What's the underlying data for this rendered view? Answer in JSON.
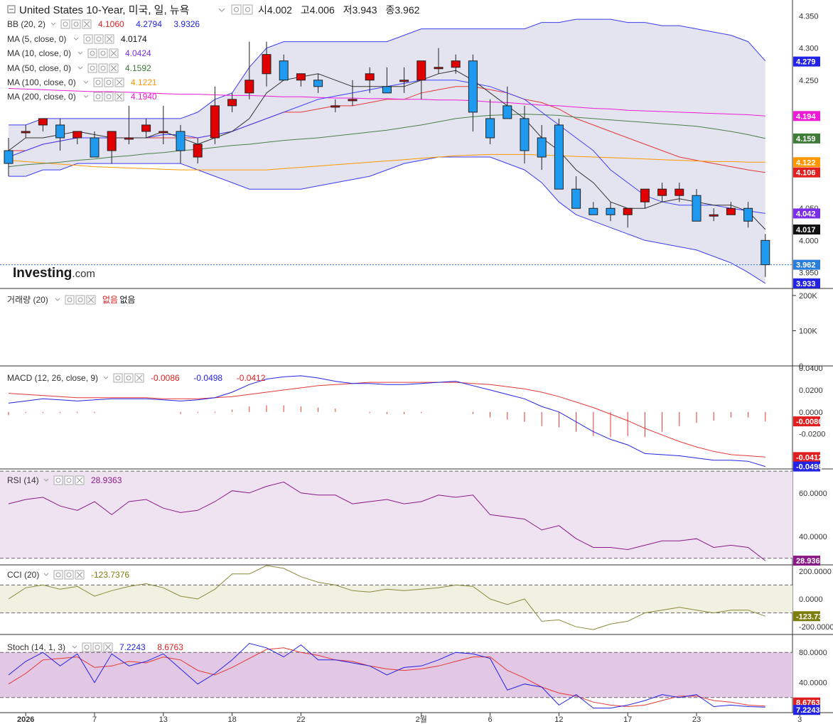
{
  "header": {
    "title": "United States 10-Year, 미국, 일, 뉴욕",
    "open_label": "시",
    "open": "4.002",
    "high_label": "고",
    "high": "4.006",
    "low_label": "저",
    "low": "3.943",
    "close_label": "종",
    "close": "3.962"
  },
  "logo": {
    "main": "Investing",
    "suffix": ".com"
  },
  "indicators": {
    "bb": {
      "label": "BB (20, 2)",
      "values": [
        "4.1060",
        "4.2794",
        "3.9326"
      ]
    },
    "ma5": {
      "label": "MA (5, close, 0)",
      "value": "4.0174"
    },
    "ma10": {
      "label": "MA (10, close, 0)",
      "value": "4.0424"
    },
    "ma50": {
      "label": "MA (50, close, 0)",
      "value": "4.1592"
    },
    "ma100": {
      "label": "MA (100, close, 0)",
      "value": "4.1221"
    },
    "ma200": {
      "label": "MA (200, close, 0)",
      "value": "4.1940"
    },
    "volume": {
      "label": "거래량 (20)",
      "value1": "없음",
      "value2": "없음"
    },
    "macd": {
      "label": "MACD (12, 26, close, 9)",
      "values": [
        "-0.0086",
        "-0.0498",
        "-0.0412"
      ]
    },
    "rsi": {
      "label": "RSI (14)",
      "value": "28.9363"
    },
    "cci": {
      "label": "CCI (20)",
      "value": "-123.7376"
    },
    "stoch": {
      "label": "Stoch (14, 1, 3)",
      "values": [
        "7.2243",
        "8.6763"
      ]
    }
  },
  "price_axis": {
    "ticks": [
      "4.350",
      "4.300",
      "4.250",
      "4.050",
      "4.000",
      "3.950"
    ],
    "tags": [
      {
        "text": "4.279",
        "color": "#2323e6"
      },
      {
        "text": "4.194",
        "color": "#ee1bd6"
      },
      {
        "text": "4.159",
        "color": "#3e7a38"
      },
      {
        "text": "4.122",
        "color": "#ff9800"
      },
      {
        "text": "4.106",
        "color": "#e02020"
      },
      {
        "text": "4.042",
        "color": "#7b2ee8"
      },
      {
        "text": "4.017",
        "color": "#111111"
      },
      {
        "text": "3.962",
        "color": "#2a7dd8"
      },
      {
        "text": "3.933",
        "color": "#2323e6"
      }
    ]
  },
  "volume_axis": {
    "ticks": [
      "200K",
      "100K",
      "0"
    ]
  },
  "macd_axis": {
    "ticks": [
      "0.0400",
      "0.0200",
      "0.0000",
      "-0.0200"
    ],
    "tags": [
      {
        "text": "-0.0086",
        "color": "#e02020"
      },
      {
        "text": "-0.0412",
        "color": "#e02020"
      },
      {
        "text": "-0.0498",
        "color": "#2323e6"
      }
    ]
  },
  "rsi_axis": {
    "ticks": [
      "60.0000",
      "40.0000"
    ],
    "tag": {
      "text": "28.9363",
      "color": "#8b1a89"
    }
  },
  "cci_axis": {
    "ticks": [
      "200.0000",
      "0.0000",
      "-200.0000"
    ],
    "tag": {
      "text": "-123.7376",
      "color": "#7d7d0f"
    }
  },
  "stoch_axis": {
    "ticks": [
      "80.0000",
      "40.0000"
    ],
    "tags": [
      {
        "text": "8.6763",
        "color": "#e02020"
      },
      {
        "text": "7.2243",
        "color": "#2323e6"
      }
    ]
  },
  "x_axis": {
    "ticks": [
      {
        "i": 1,
        "label": "2026"
      },
      {
        "i": 5,
        "label": "7"
      },
      {
        "i": 9,
        "label": "13"
      },
      {
        "i": 13,
        "label": "18"
      },
      {
        "i": 17,
        "label": "22"
      },
      {
        "i": 24,
        "label": "2월"
      },
      {
        "i": 28,
        "label": "6"
      },
      {
        "i": 32,
        "label": "12"
      },
      {
        "i": 36,
        "label": "17"
      },
      {
        "i": 40,
        "label": "23"
      },
      {
        "i": 46,
        "label": "3"
      }
    ]
  },
  "chart_data": {
    "type": "candlestick",
    "title": "United States 10-Year, 미국, 일, 뉴욕",
    "ylim": [
      3.925,
      4.375
    ],
    "candles": [
      [
        4.14,
        4.16,
        4.1,
        4.12
      ],
      [
        4.17,
        4.18,
        4.16,
        4.17
      ],
      [
        4.18,
        4.19,
        4.17,
        4.19
      ],
      [
        4.18,
        4.19,
        4.14,
        4.16
      ],
      [
        4.16,
        4.17,
        4.15,
        4.17
      ],
      [
        4.16,
        4.17,
        4.13,
        4.13
      ],
      [
        4.14,
        4.17,
        4.12,
        4.17
      ],
      [
        4.16,
        4.21,
        4.15,
        4.16
      ],
      [
        4.17,
        4.19,
        4.16,
        4.18
      ],
      [
        4.17,
        4.21,
        4.15,
        4.17
      ],
      [
        4.17,
        4.18,
        4.12,
        4.14
      ],
      [
        4.13,
        4.16,
        4.12,
        4.15
      ],
      [
        4.16,
        4.24,
        4.15,
        4.21
      ],
      [
        4.21,
        4.23,
        4.2,
        4.22
      ],
      [
        4.23,
        4.31,
        4.22,
        4.25
      ],
      [
        4.26,
        4.31,
        4.24,
        4.29
      ],
      [
        4.28,
        4.29,
        4.25,
        4.25
      ],
      [
        4.25,
        4.26,
        4.24,
        4.26
      ],
      [
        4.25,
        4.26,
        4.23,
        4.24
      ],
      [
        4.21,
        4.22,
        4.2,
        4.21
      ],
      [
        4.22,
        4.25,
        4.21,
        4.22
      ],
      [
        4.25,
        4.27,
        4.23,
        4.26
      ],
      [
        4.24,
        4.27,
        4.23,
        4.23
      ],
      [
        4.25,
        4.27,
        4.23,
        4.25
      ],
      [
        4.25,
        4.28,
        4.22,
        4.28
      ],
      [
        4.27,
        4.3,
        4.26,
        4.27
      ],
      [
        4.27,
        4.29,
        4.26,
        4.28
      ],
      [
        4.28,
        4.29,
        4.17,
        4.2
      ],
      [
        4.19,
        4.22,
        4.15,
        4.16
      ],
      [
        4.21,
        4.24,
        4.19,
        4.19
      ],
      [
        4.19,
        4.21,
        4.12,
        4.14
      ],
      [
        4.16,
        4.18,
        4.11,
        4.13
      ],
      [
        4.18,
        4.19,
        4.08,
        4.08
      ],
      [
        4.08,
        4.1,
        4.05,
        4.05
      ],
      [
        4.05,
        4.06,
        4.04,
        4.04
      ],
      [
        4.05,
        4.06,
        4.03,
        4.04
      ],
      [
        4.04,
        4.05,
        4.02,
        4.05
      ],
      [
        4.06,
        4.08,
        4.05,
        4.08
      ],
      [
        4.07,
        4.09,
        4.06,
        4.08
      ],
      [
        4.07,
        4.09,
        4.06,
        4.08
      ],
      [
        4.07,
        4.08,
        4.03,
        4.03
      ],
      [
        4.04,
        4.05,
        4.03,
        4.04
      ],
      [
        4.04,
        4.06,
        4.04,
        4.05
      ],
      [
        4.05,
        4.06,
        4.02,
        4.03
      ],
      [
        4.0,
        4.01,
        3.943,
        3.962
      ]
    ],
    "bb_upper": [
      4.18,
      4.18,
      4.19,
      4.19,
      4.19,
      4.19,
      4.19,
      4.19,
      4.19,
      4.19,
      4.19,
      4.2,
      4.22,
      4.23,
      4.27,
      4.3,
      4.31,
      4.31,
      4.31,
      4.31,
      4.31,
      4.31,
      4.31,
      4.32,
      4.33,
      4.33,
      4.33,
      4.33,
      4.33,
      4.33,
      4.33,
      4.34,
      4.34,
      4.345,
      4.345,
      4.345,
      4.34,
      4.34,
      4.335,
      4.335,
      4.33,
      4.325,
      4.32,
      4.31,
      4.28
    ],
    "bb_lower": [
      4.1,
      4.1,
      4.11,
      4.11,
      4.12,
      4.12,
      4.12,
      4.12,
      4.12,
      4.12,
      4.12,
      4.11,
      4.1,
      4.09,
      4.08,
      4.08,
      4.08,
      4.08,
      4.085,
      4.09,
      4.095,
      4.1,
      4.11,
      4.12,
      4.125,
      4.13,
      4.13,
      4.13,
      4.13,
      4.12,
      4.11,
      4.09,
      4.06,
      4.04,
      4.03,
      4.02,
      4.01,
      4.0,
      3.995,
      3.99,
      3.985,
      3.975,
      3.965,
      3.95,
      3.933
    ],
    "bb_mid": [
      4.14,
      4.14,
      4.15,
      4.155,
      4.16,
      4.16,
      4.16,
      4.16,
      4.16,
      4.16,
      4.16,
      4.16,
      4.165,
      4.17,
      4.18,
      4.19,
      4.2,
      4.2,
      4.205,
      4.21,
      4.21,
      4.215,
      4.22,
      4.22,
      4.23,
      4.235,
      4.24,
      4.24,
      4.235,
      4.23,
      4.22,
      4.215,
      4.205,
      4.19,
      4.18,
      4.17,
      4.16,
      4.15,
      4.14,
      4.13,
      4.125,
      4.12,
      4.115,
      4.11,
      4.106
    ],
    "ma5": [
      4.14,
      4.16,
      4.16,
      4.165,
      4.17,
      4.165,
      4.16,
      4.16,
      4.16,
      4.17,
      4.16,
      4.15,
      4.16,
      4.17,
      4.19,
      4.23,
      4.25,
      4.255,
      4.26,
      4.25,
      4.24,
      4.24,
      4.24,
      4.24,
      4.25,
      4.26,
      4.265,
      4.25,
      4.23,
      4.21,
      4.19,
      4.16,
      4.14,
      4.11,
      4.09,
      4.06,
      4.05,
      4.05,
      4.06,
      4.065,
      4.06,
      4.055,
      4.055,
      4.045,
      4.017
    ],
    "ma10": [
      4.13,
      4.14,
      4.15,
      4.155,
      4.16,
      4.16,
      4.16,
      4.16,
      4.16,
      4.165,
      4.165,
      4.16,
      4.165,
      4.17,
      4.18,
      4.19,
      4.2,
      4.21,
      4.22,
      4.225,
      4.23,
      4.235,
      4.24,
      4.245,
      4.25,
      4.25,
      4.25,
      4.245,
      4.24,
      4.23,
      4.22,
      4.2,
      4.18,
      4.16,
      4.14,
      4.11,
      4.09,
      4.07,
      4.06,
      4.055,
      4.055,
      4.055,
      4.05,
      4.046,
      4.042
    ],
    "ma50": [
      4.115,
      4.118,
      4.12,
      4.122,
      4.125,
      4.127,
      4.13,
      4.132,
      4.135,
      4.137,
      4.14,
      4.142,
      4.145,
      4.148,
      4.15,
      4.153,
      4.156,
      4.158,
      4.16,
      4.163,
      4.166,
      4.169,
      4.172,
      4.176,
      4.18,
      4.185,
      4.19,
      4.193,
      4.195,
      4.196,
      4.197,
      4.196,
      4.195,
      4.192,
      4.19,
      4.188,
      4.186,
      4.184,
      4.182,
      4.18,
      4.178,
      4.174,
      4.17,
      4.165,
      4.159
    ],
    "ma100": [
      4.125,
      4.123,
      4.121,
      4.119,
      4.117,
      4.115,
      4.114,
      4.113,
      4.112,
      4.111,
      4.11,
      4.11,
      4.11,
      4.11,
      4.11,
      4.11,
      4.112,
      4.114,
      4.116,
      4.118,
      4.12,
      4.122,
      4.124,
      4.126,
      4.128,
      4.13,
      4.132,
      4.133,
      4.134,
      4.134,
      4.134,
      4.133,
      4.132,
      4.131,
      4.13,
      4.129,
      4.128,
      4.127,
      4.126,
      4.125,
      4.124,
      4.123,
      4.123,
      4.122,
      4.122
    ],
    "ma200": [
      4.237,
      4.236,
      4.235,
      4.234,
      4.233,
      4.232,
      4.232,
      4.231,
      4.23,
      4.229,
      4.228,
      4.228,
      4.227,
      4.226,
      4.226,
      4.225,
      4.224,
      4.224,
      4.223,
      4.222,
      4.222,
      4.221,
      4.221,
      4.22,
      4.22,
      4.219,
      4.219,
      4.218,
      4.216,
      4.215,
      4.213,
      4.211,
      4.21,
      4.208,
      4.206,
      4.205,
      4.203,
      4.202,
      4.201,
      4.2,
      4.199,
      4.198,
      4.197,
      4.196,
      4.194
    ],
    "volume": {
      "ylim": [
        0,
        220000
      ],
      "values": []
    },
    "macd": {
      "ylim": [
        -0.052,
        0.042
      ],
      "macd": [
        0.008,
        0.01,
        0.012,
        0.011,
        0.01,
        0.011,
        0.012,
        0.012,
        0.012,
        0.011,
        0.01,
        0.011,
        0.013,
        0.018,
        0.025,
        0.03,
        0.032,
        0.033,
        0.031,
        0.028,
        0.026,
        0.026,
        0.025,
        0.025,
        0.026,
        0.027,
        0.028,
        0.024,
        0.02,
        0.016,
        0.012,
        0.005,
        0.0,
        -0.009,
        -0.018,
        -0.025,
        -0.03,
        -0.038,
        -0.039,
        -0.04,
        -0.042,
        -0.044,
        -0.044,
        -0.045,
        -0.0498
      ],
      "signal": [
        0.017,
        0.016,
        0.015,
        0.014,
        0.013,
        0.013,
        0.013,
        0.013,
        0.013,
        0.012,
        0.012,
        0.012,
        0.013,
        0.014,
        0.016,
        0.018,
        0.02,
        0.022,
        0.024,
        0.025,
        0.026,
        0.027,
        0.027,
        0.027,
        0.027,
        0.027,
        0.027,
        0.026,
        0.025,
        0.023,
        0.021,
        0.018,
        0.014,
        0.009,
        0.004,
        -0.002,
        -0.008,
        -0.015,
        -0.021,
        -0.027,
        -0.032,
        -0.036,
        -0.039,
        -0.04,
        -0.0412
      ],
      "hist": [
        -0.003,
        -0.001,
        -0.001,
        -0.001,
        -0.001,
        -0.001,
        0.0,
        0.0,
        0.0,
        0.0,
        -0.002,
        -0.001,
        -0.001,
        0.002,
        0.005,
        0.006,
        0.006,
        0.005,
        0.004,
        0.003,
        0.0,
        -0.001,
        -0.002,
        -0.002,
        -0.001,
        0.0,
        0.0,
        -0.002,
        -0.005,
        -0.007,
        -0.009,
        -0.013,
        -0.014,
        -0.018,
        -0.022,
        -0.023,
        -0.022,
        -0.023,
        -0.018,
        -0.013,
        -0.01,
        -0.008,
        -0.005,
        -0.005,
        -0.0086
      ]
    },
    "rsi": {
      "ylim": [
        27,
        71
      ],
      "upper": 70,
      "lower": 30,
      "values": [
        55,
        57,
        58,
        54,
        52,
        56,
        50,
        56,
        57,
        53,
        51,
        52,
        56,
        61,
        60,
        63,
        65,
        60,
        59,
        59,
        55,
        56,
        57,
        55,
        56,
        59,
        58,
        59,
        50,
        49,
        48,
        43,
        45,
        39,
        35,
        35,
        34,
        36,
        38,
        38,
        39,
        35,
        36,
        35,
        28.9363
      ]
    },
    "cci": {
      "ylim": [
        -255,
        245
      ],
      "upper": 100,
      "lower": -100,
      "values": [
        0,
        80,
        100,
        70,
        90,
        20,
        60,
        90,
        110,
        80,
        20,
        0,
        70,
        180,
        180,
        240,
        220,
        160,
        120,
        100,
        60,
        50,
        70,
        60,
        70,
        80,
        100,
        90,
        0,
        -40,
        0,
        -160,
        -150,
        -200,
        -220,
        -180,
        -160,
        -100,
        -80,
        -60,
        -80,
        -100,
        -80,
        -80,
        -123.7376
      ]
    },
    "stoch": {
      "ylim": [
        0,
        100
      ],
      "upper": 80,
      "lower": 20,
      "k": [
        50,
        68,
        80,
        62,
        78,
        40,
        78,
        62,
        68,
        78,
        58,
        38,
        52,
        70,
        92,
        86,
        74,
        90,
        70,
        70,
        66,
        62,
        50,
        60,
        62,
        70,
        80,
        78,
        72,
        30,
        38,
        34,
        10,
        24,
        6,
        6,
        10,
        16,
        24,
        20,
        24,
        8,
        10,
        8,
        7.2243
      ],
      "d": [
        38,
        52,
        70,
        72,
        74,
        60,
        62,
        68,
        66,
        74,
        70,
        56,
        50,
        60,
        72,
        84,
        86,
        80,
        76,
        70,
        68,
        62,
        58,
        56,
        58,
        62,
        68,
        74,
        74,
        56,
        46,
        34,
        26,
        22,
        14,
        10,
        8,
        10,
        16,
        22,
        22,
        16,
        14,
        10,
        8.6763
      ]
    },
    "x_ticks": [
      "2026",
      "7",
      "13",
      "18",
      "22",
      "2월",
      "6",
      "12",
      "17",
      "23",
      "3"
    ]
  }
}
